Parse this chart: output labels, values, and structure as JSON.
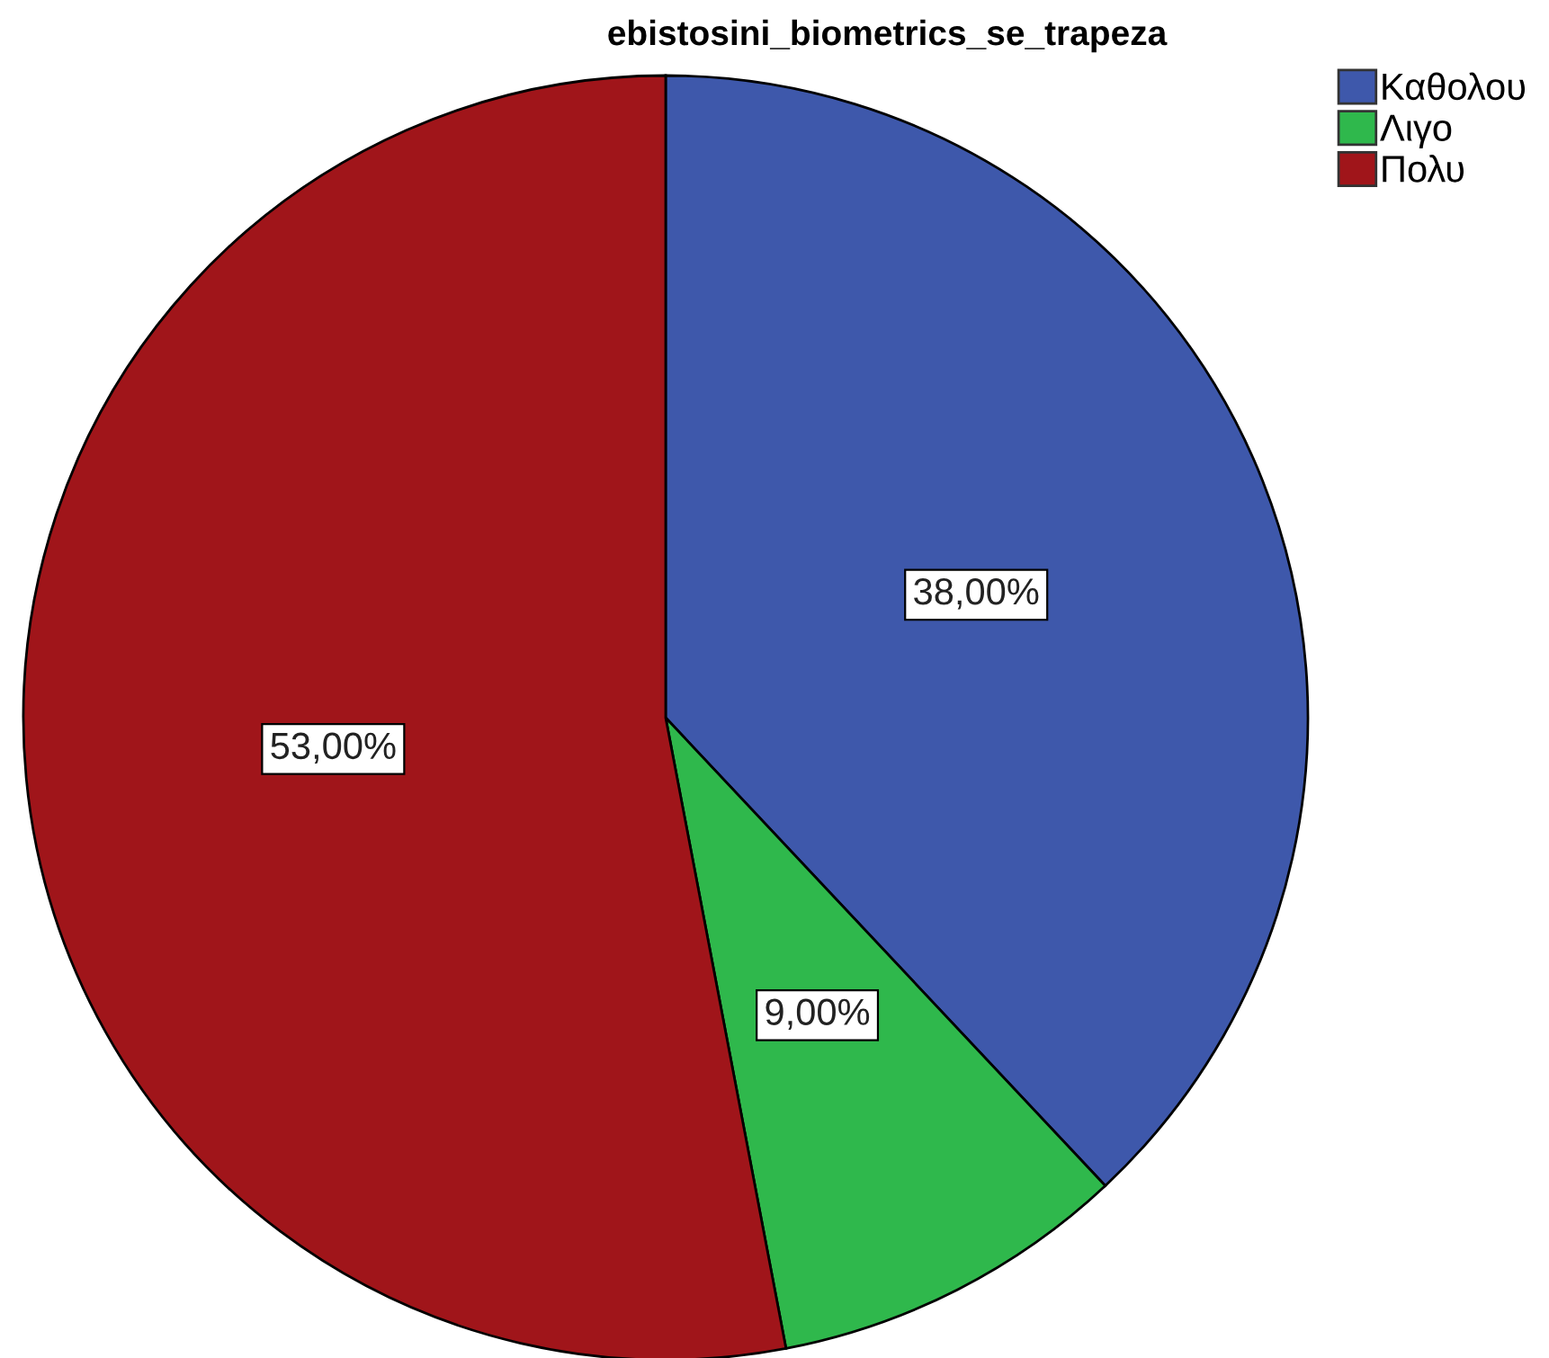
{
  "chart_data": {
    "type": "pie",
    "title": "ebistosini_biometrics_se_trapeza",
    "categories": [
      "Καθολου",
      "Λιγο",
      "Πολυ"
    ],
    "values": [
      38,
      9,
      53
    ],
    "colors": [
      "#3e58ab",
      "#2fb84c",
      "#a0151a"
    ],
    "value_labels": [
      "38,00%",
      "9,00%",
      "53,00%"
    ],
    "legend": "top right"
  }
}
